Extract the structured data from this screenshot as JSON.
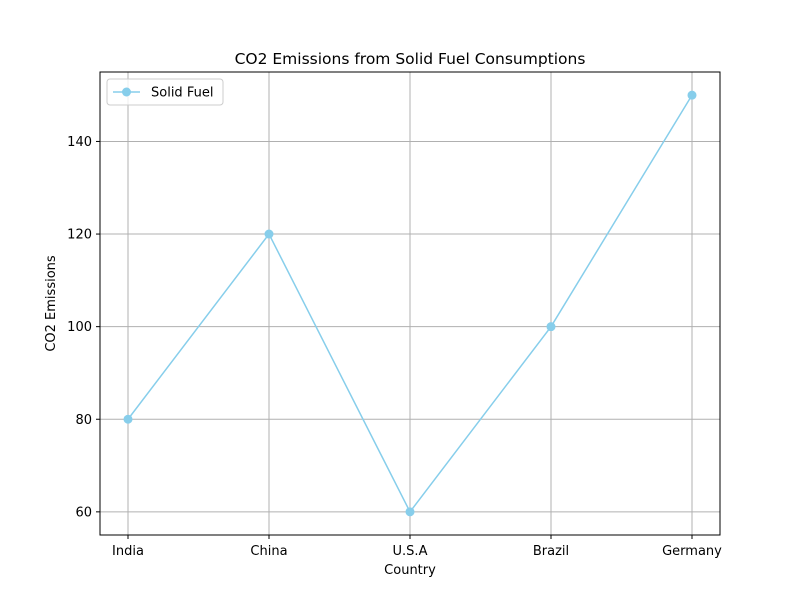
{
  "chart_data": {
    "type": "line",
    "title": "CO2 Emissions from Solid Fuel Consumptions",
    "xlabel": "Country",
    "ylabel": "CO2 Emissions",
    "categories": [
      "India",
      "China",
      "U.S.A",
      "Brazil",
      "Germany"
    ],
    "series": [
      {
        "name": "Solid Fuel",
        "values": [
          80,
          120,
          60,
          100,
          150
        ],
        "color": "#87CEEB",
        "marker": "circle"
      }
    ],
    "ylim": [
      55,
      155
    ],
    "yticks": [
      60,
      80,
      100,
      120,
      140
    ],
    "grid": true,
    "legend_position": "top-left",
    "colors": {
      "grid": "#b0b0b0",
      "axis": "#000000"
    }
  }
}
